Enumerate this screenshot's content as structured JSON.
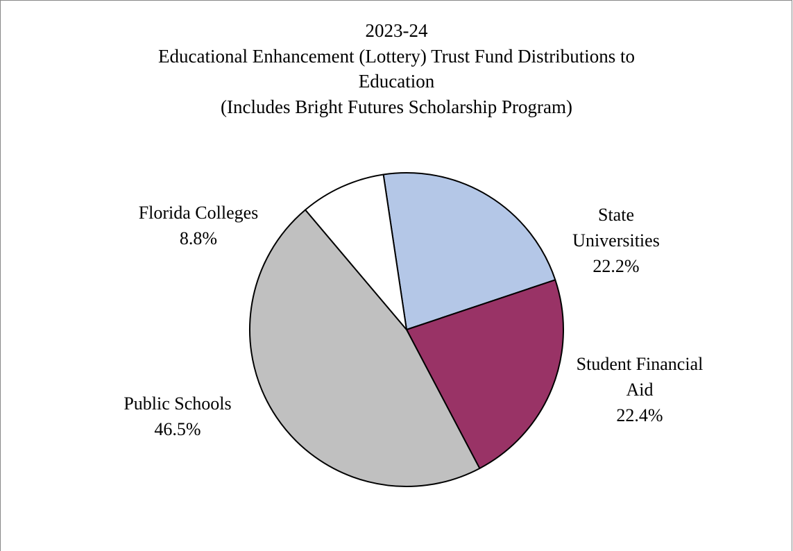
{
  "chart_data": {
    "type": "pie",
    "title": [
      "2023-24",
      "Educational Enhancement (Lottery) Trust Fund Distributions to",
      "Education",
      "(Includes Bright Futures Scholarship Program)"
    ],
    "categories": [
      "State Universities",
      "Student Financial Aid",
      "Public Schools",
      "Florida Colleges"
    ],
    "values": [
      22.2,
      22.4,
      46.5,
      8.8
    ],
    "value_labels": [
      "22.2%",
      "22.4%",
      "46.5%",
      "8.8%"
    ],
    "colors": [
      "#b4c7e7",
      "#993366",
      "#c0c0c0",
      "#ffffff"
    ]
  }
}
